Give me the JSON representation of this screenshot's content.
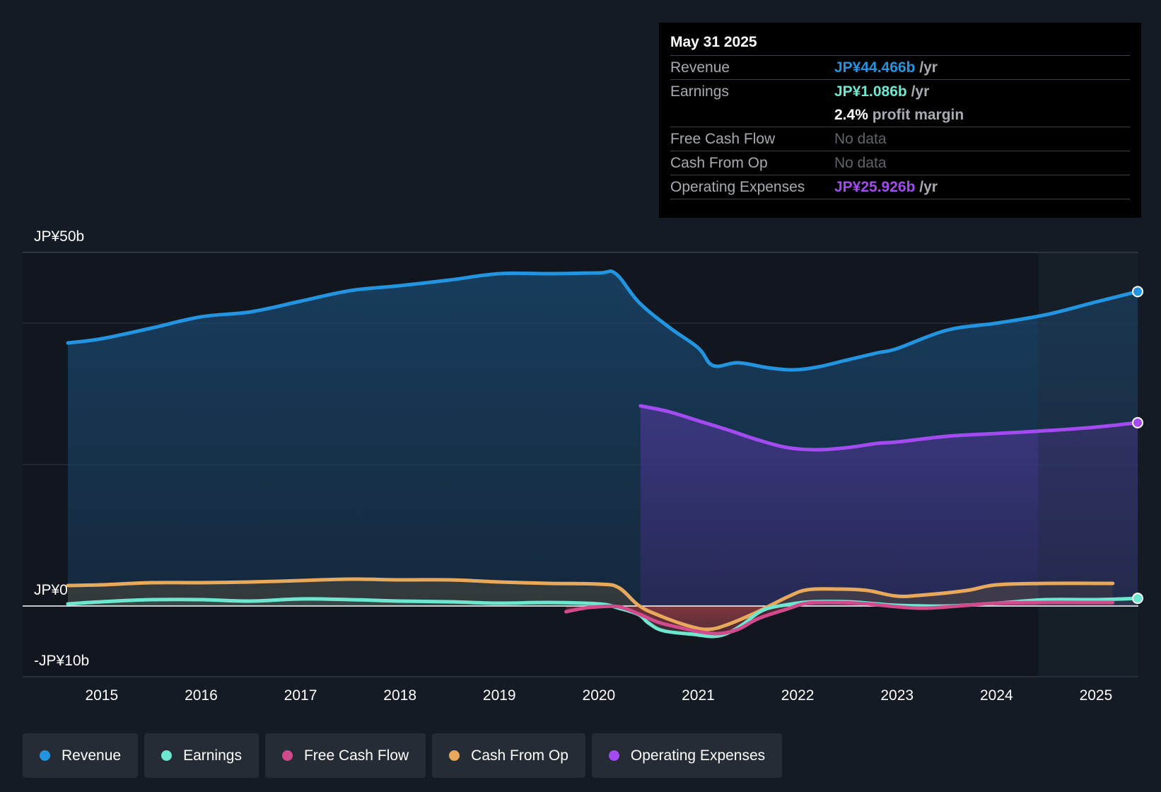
{
  "tooltip": {
    "date": "May 31 2025",
    "revenue_label": "Revenue",
    "revenue_value": "JP¥44.466b",
    "earnings_label": "Earnings",
    "earnings_value": "JP¥1.086b",
    "profit_margin_value": "2.4%",
    "profit_margin_label": "profit margin",
    "fcf_label": "Free Cash Flow",
    "fcf_value": "No data",
    "cfo_label": "Cash From Op",
    "cfo_value": "No data",
    "opex_label": "Operating Expenses",
    "opex_value": "JP¥25.926b",
    "per_year": "/yr"
  },
  "legend": {
    "revenue": "Revenue",
    "earnings": "Earnings",
    "fcf": "Free Cash Flow",
    "cfo": "Cash From Op",
    "opex": "Operating Expenses"
  },
  "colors": {
    "background": "#151b25",
    "revenue": "#2394df",
    "earnings": "#6ee7d1",
    "fcf": "#d04a8c",
    "cfo": "#e8a95a",
    "opex": "#a34bf0",
    "legend_bg": "#262c36",
    "grid": "#2f3744",
    "zero_line": "#ffffff"
  },
  "chart_data": {
    "type": "area",
    "unit": "JP¥ billions",
    "ylim": [
      -10,
      50
    ],
    "ytick_labels": [
      {
        "value": 50,
        "label": "JP¥50b"
      },
      {
        "value": 0,
        "label": "JP¥0"
      },
      {
        "value": -10,
        "label": "-JP¥10b"
      }
    ],
    "gridlines": [
      50,
      40,
      20,
      0
    ],
    "xlim": [
      2014.66,
      2025.42
    ],
    "xticks": [
      "2015",
      "2016",
      "2017",
      "2018",
      "2019",
      "2020",
      "2021",
      "2022",
      "2023",
      "2024",
      "2025"
    ],
    "forecast_start": 2024.42,
    "series": [
      {
        "name": "Revenue",
        "key": "revenue",
        "fill": true,
        "x": [
          2014.66,
          2015.0,
          2015.5,
          2016.0,
          2016.5,
          2017.0,
          2017.5,
          2018.0,
          2018.5,
          2019.0,
          2019.5,
          2020.0,
          2020.17,
          2020.4,
          2020.7,
          2021.0,
          2021.15,
          2021.4,
          2021.7,
          2021.95,
          2022.2,
          2022.5,
          2022.8,
          2023.0,
          2023.5,
          2024.0,
          2024.5,
          2025.0,
          2025.42
        ],
        "values": [
          37.2,
          37.8,
          39.3,
          40.9,
          41.6,
          43.1,
          44.6,
          45.3,
          46.1,
          47.0,
          47.0,
          47.1,
          47.0,
          43.0,
          39.5,
          36.5,
          34.0,
          34.4,
          33.7,
          33.4,
          33.8,
          34.8,
          35.8,
          36.4,
          39.0,
          40.0,
          41.2,
          43.0,
          44.466
        ]
      },
      {
        "name": "Operating Expenses",
        "key": "opex",
        "fill": true,
        "x": [
          2020.42,
          2020.7,
          2021.0,
          2021.3,
          2021.6,
          2021.9,
          2022.2,
          2022.5,
          2022.8,
          2023.0,
          2023.5,
          2024.0,
          2024.5,
          2025.0,
          2025.42
        ],
        "values": [
          28.3,
          27.5,
          26.2,
          24.9,
          23.5,
          22.4,
          22.1,
          22.4,
          23.0,
          23.2,
          24.0,
          24.4,
          24.8,
          25.3,
          25.926
        ]
      },
      {
        "name": "Cash From Op",
        "key": "cfo",
        "fill": true,
        "x": [
          2014.66,
          2015.0,
          2015.5,
          2016.0,
          2016.5,
          2017.0,
          2017.5,
          2018.0,
          2018.5,
          2019.0,
          2019.5,
          2020.0,
          2020.2,
          2020.4,
          2020.6,
          2020.9,
          2021.1,
          2021.3,
          2021.6,
          2021.9,
          2022.1,
          2022.4,
          2022.7,
          2023.0,
          2023.3,
          2023.7,
          2024.0,
          2024.5,
          2025.0,
          2025.17
        ],
        "values": [
          2.9,
          3.0,
          3.3,
          3.3,
          3.4,
          3.6,
          3.8,
          3.7,
          3.7,
          3.4,
          3.2,
          3.1,
          2.6,
          0.1,
          -1.3,
          -2.8,
          -3.3,
          -2.6,
          -0.8,
          1.3,
          2.3,
          2.4,
          2.2,
          1.4,
          1.6,
          2.2,
          3.0,
          3.2,
          3.2,
          3.2
        ]
      },
      {
        "name": "Earnings",
        "key": "earnings",
        "fill": true,
        "x": [
          2014.66,
          2015.0,
          2015.5,
          2016.0,
          2016.5,
          2017.0,
          2017.5,
          2018.0,
          2018.5,
          2019.0,
          2019.5,
          2020.0,
          2020.2,
          2020.4,
          2020.5,
          2020.65,
          2020.95,
          2021.15,
          2021.3,
          2021.45,
          2021.65,
          2021.9,
          2022.15,
          2022.5,
          2022.8,
          2023.0,
          2023.5,
          2024.0,
          2024.5,
          2025.0,
          2025.42
        ],
        "values": [
          0.3,
          0.6,
          0.9,
          0.9,
          0.7,
          1.0,
          0.9,
          0.7,
          0.6,
          0.4,
          0.5,
          0.3,
          -0.3,
          -1.2,
          -2.4,
          -3.5,
          -4.0,
          -4.3,
          -3.8,
          -2.6,
          -0.6,
          0.2,
          0.6,
          0.6,
          0.3,
          0.1,
          0.0,
          0.4,
          0.9,
          0.9,
          1.086
        ]
      },
      {
        "name": "Free Cash Flow",
        "key": "fcf",
        "fill": true,
        "x": [
          2019.67,
          2019.85,
          2020.0,
          2020.2,
          2020.4,
          2020.6,
          2020.8,
          2021.0,
          2021.2,
          2021.4,
          2021.6,
          2021.9,
          2022.1,
          2022.4,
          2022.7,
          2023.0,
          2023.3,
          2023.7,
          2024.0,
          2024.5,
          2025.0,
          2025.17
        ],
        "values": [
          -0.8,
          -0.3,
          -0.1,
          -0.1,
          -1.1,
          -2.3,
          -3.0,
          -3.6,
          -3.9,
          -3.3,
          -1.8,
          -0.4,
          0.4,
          0.5,
          0.3,
          -0.1,
          -0.3,
          0.1,
          0.4,
          0.5,
          0.5,
          0.5
        ]
      }
    ]
  }
}
